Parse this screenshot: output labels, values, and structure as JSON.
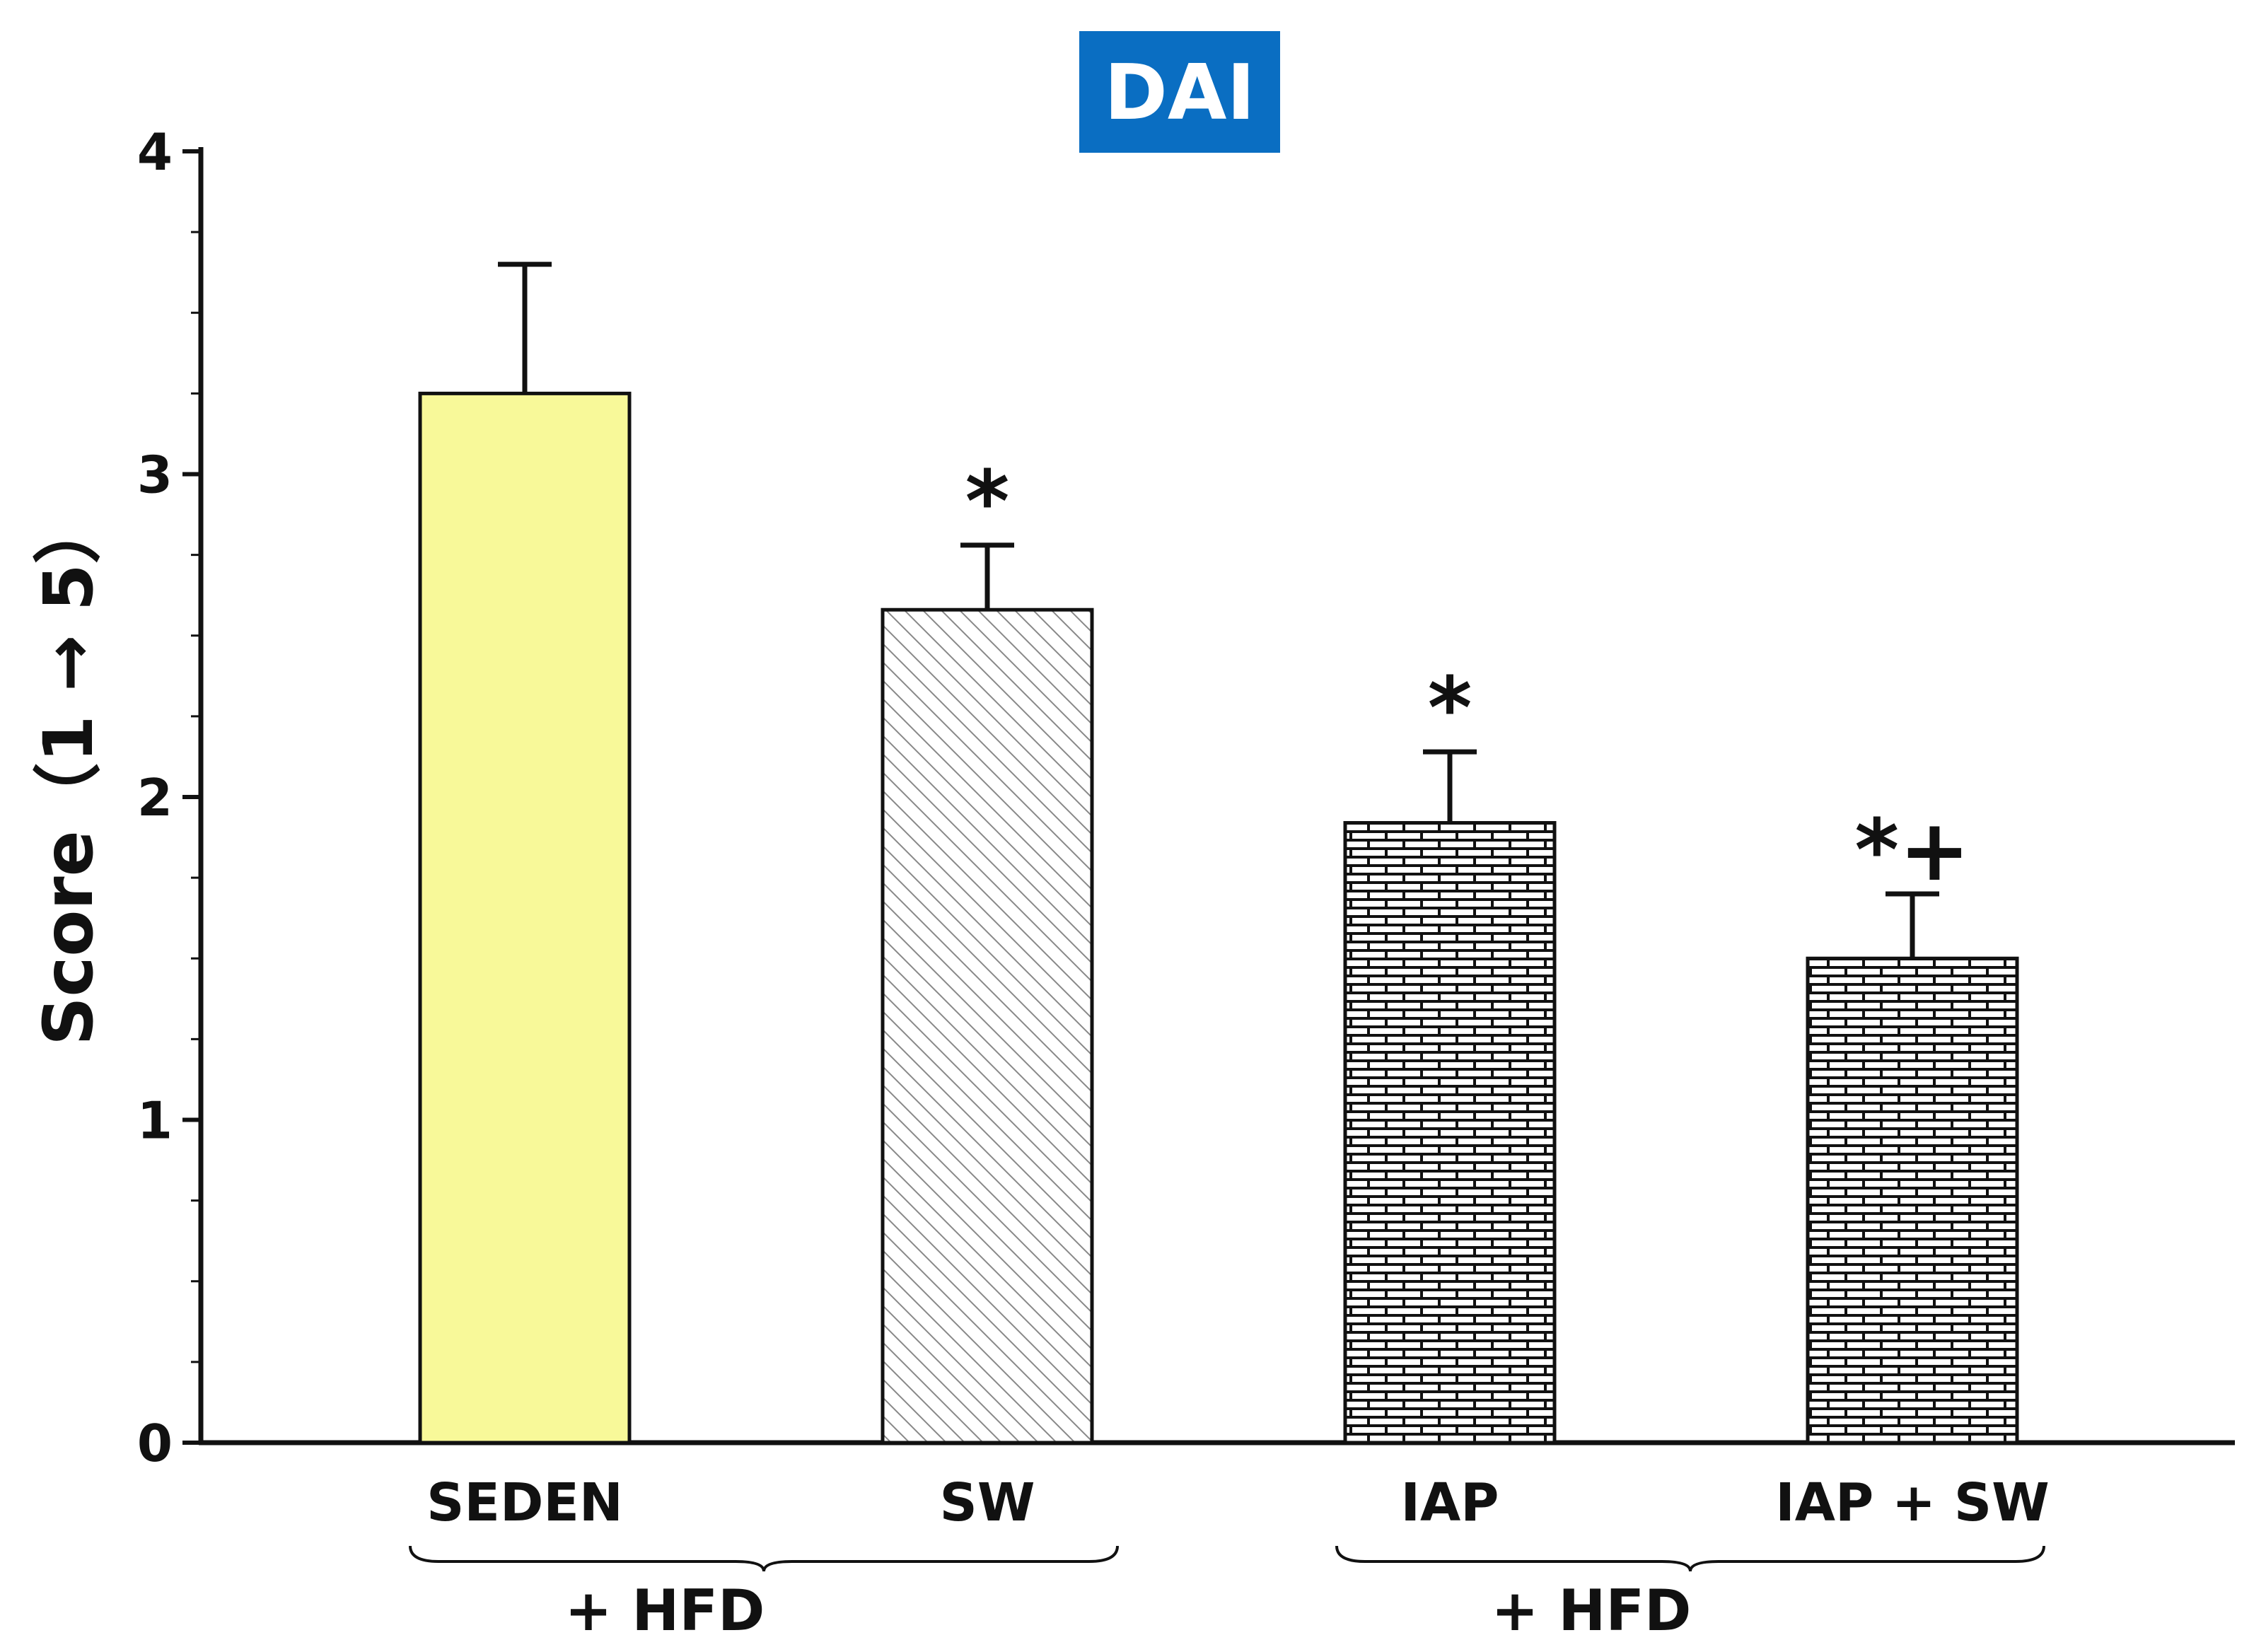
{
  "chart_data": {
    "type": "bar",
    "title": "DAI",
    "ylabel": "Score（1 → 5）",
    "xlabel": "",
    "ylim": [
      0,
      4
    ],
    "yticks": [
      "0",
      "1",
      "2",
      "3",
      "4"
    ],
    "categories": [
      "SEDEN",
      "SW",
      "IAP",
      "IAP + SW"
    ],
    "values": [
      3.25,
      2.58,
      1.92,
      1.5
    ],
    "errors": [
      0.4,
      0.2,
      0.22,
      0.2
    ],
    "significance": [
      "",
      "*",
      "*",
      "*+"
    ],
    "fills": [
      "solid-yellow",
      "diagonal-hatch",
      "brick",
      "brick"
    ],
    "groups": [
      {
        "label": "+ HFD",
        "categories": [
          "SEDEN",
          "SW"
        ]
      },
      {
        "label": "+ HFD",
        "categories": [
          "IAP",
          "IAP + SW"
        ]
      }
    ],
    "grid": false,
    "legend": "none"
  },
  "colors": {
    "title_bg": "#0a6ec2",
    "title_text": "#ffffff",
    "seden_fill": "#f8f999",
    "axis": "#111111"
  }
}
